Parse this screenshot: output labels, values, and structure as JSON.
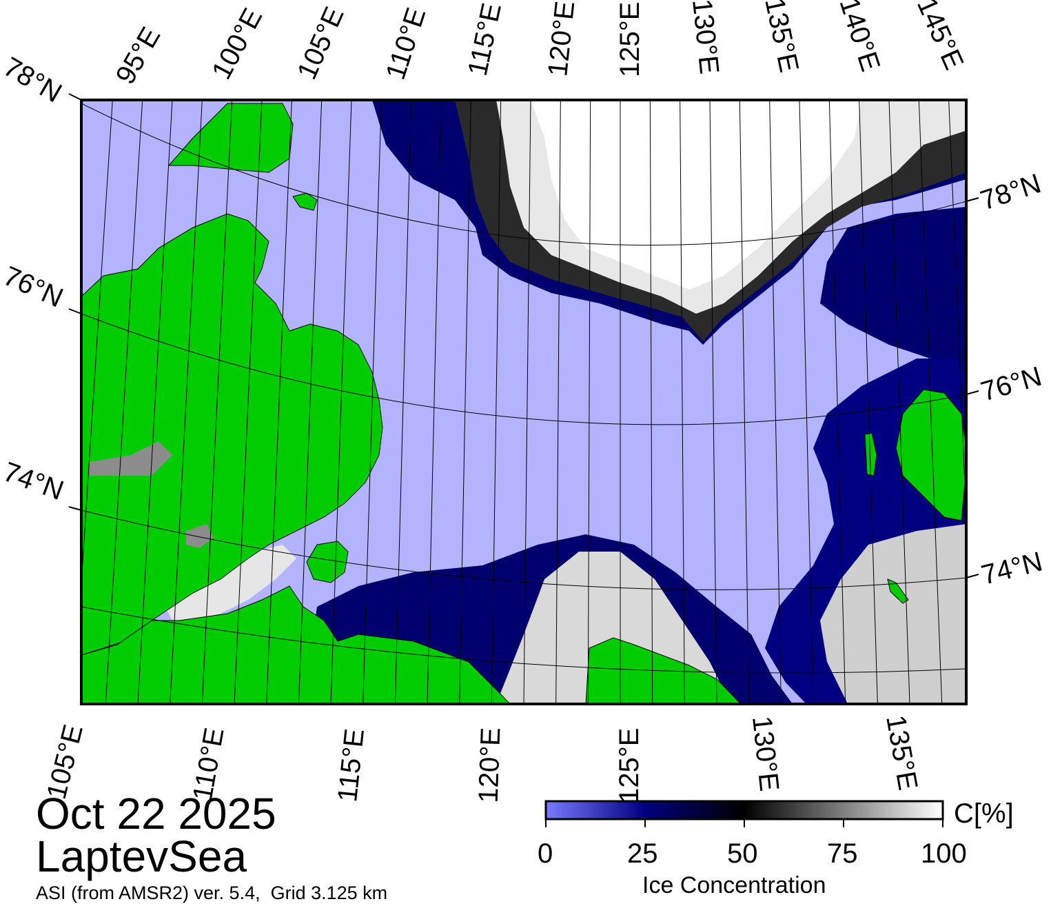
{
  "map": {
    "date": "Oct 22 2025",
    "region": "LaptevSea",
    "source": "ASI (from AMSR2) ver. 5.4,  Grid 3.125 km",
    "colors": {
      "open_water": "#b3b3ff",
      "land": "#00cc00",
      "coast_mask": "#8c8c8c",
      "ice_low": "#000080",
      "ice_high": "#ffffff"
    },
    "top_lon_labels": [
      "95°E",
      "100°E",
      "105°E",
      "110°E",
      "115°E",
      "120°E",
      "125°E",
      "130°E",
      "135°E",
      "140°E",
      "145°E"
    ],
    "bottom_lon_labels": [
      "105°E",
      "110°E",
      "115°E",
      "120°E",
      "125°E",
      "130°E",
      "135°E"
    ],
    "left_lat_labels": [
      "78°N",
      "76°N",
      "74°N"
    ],
    "right_lat_labels": [
      "78°N",
      "76°N",
      "74°N"
    ]
  },
  "colorbar": {
    "title": "Ice Concentration",
    "unit": "C[%]",
    "ticks": [
      "0",
      "25",
      "50",
      "75",
      "100"
    ],
    "stops": [
      "#7a7aff",
      "#000080",
      "#000000",
      "#ffffff"
    ]
  }
}
